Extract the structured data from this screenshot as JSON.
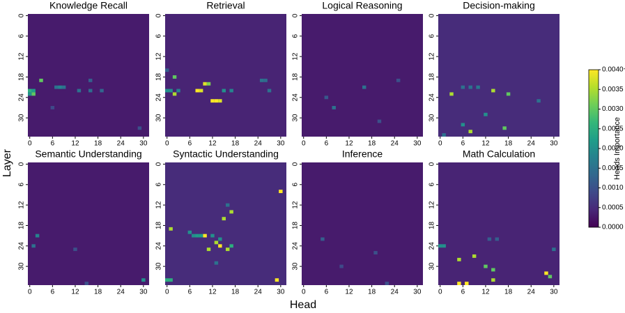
{
  "figure": {
    "xlabel": "Head",
    "ylabel": "Layer",
    "colorbar_label": "Heads Importance",
    "colormap": "viridis",
    "clim": [
      0,
      0.004
    ],
    "cticks": [
      {
        "value": 0,
        "label": "0.0000"
      },
      {
        "value": 0.0005,
        "label": "0.0005"
      },
      {
        "value": 0.001,
        "label": "0.0010"
      },
      {
        "value": 0.0015,
        "label": "0.0015"
      },
      {
        "value": 0.002,
        "label": "0.0020"
      },
      {
        "value": 0.0025,
        "label": "0.0025"
      },
      {
        "value": 0.003,
        "label": "0.0030"
      },
      {
        "value": 0.0035,
        "label": "0.0035"
      },
      {
        "value": 0.004,
        "label": "0.0040+"
      }
    ]
  },
  "chart_data": [
    {
      "type": "heatmap",
      "title": "Knowledge Recall",
      "xlim": [
        -0.5,
        31.5
      ],
      "ylim": [
        -0.5,
        35.5
      ],
      "xticks": [
        0,
        6,
        12,
        18,
        24,
        30
      ],
      "yticks": [
        0,
        6,
        12,
        18,
        24,
        30
      ],
      "fill_value": 0.0003,
      "cells": [
        {
          "layer": 22,
          "head": 0,
          "value": 0.0025
        },
        {
          "layer": 22,
          "head": 1,
          "value": 0.0022
        },
        {
          "layer": 23,
          "head": 1,
          "value": 0.003
        },
        {
          "layer": 23,
          "head": 0,
          "value": 0.002
        },
        {
          "layer": 19,
          "head": 3,
          "value": 0.003
        },
        {
          "layer": 21,
          "head": 7,
          "value": 0.0015
        },
        {
          "layer": 21,
          "head": 8,
          "value": 0.0018
        },
        {
          "layer": 21,
          "head": 9,
          "value": 0.0015
        },
        {
          "layer": 22,
          "head": 13,
          "value": 0.0015
        },
        {
          "layer": 22,
          "head": 16,
          "value": 0.0014
        },
        {
          "layer": 22,
          "head": 19,
          "value": 0.0013
        },
        {
          "layer": 19,
          "head": 16,
          "value": 0.0012
        },
        {
          "layer": 33,
          "head": 29,
          "value": 0.001
        },
        {
          "layer": 27,
          "head": 6,
          "value": 0.0009
        }
      ]
    },
    {
      "type": "heatmap",
      "title": "Retrieval",
      "xlim": [
        -0.5,
        31.5
      ],
      "ylim": [
        -0.5,
        35.5
      ],
      "xticks": [
        0,
        6,
        12,
        18,
        24,
        30
      ],
      "yticks": [
        0,
        6,
        12,
        18,
        24,
        30
      ],
      "fill_value": 0.0004,
      "cells": [
        {
          "layer": 22,
          "head": 8,
          "value": 0.004
        },
        {
          "layer": 22,
          "head": 9,
          "value": 0.0038
        },
        {
          "layer": 20,
          "head": 10,
          "value": 0.0038
        },
        {
          "layer": 20,
          "head": 11,
          "value": 0.0032
        },
        {
          "layer": 25,
          "head": 12,
          "value": 0.004
        },
        {
          "layer": 25,
          "head": 13,
          "value": 0.004
        },
        {
          "layer": 25,
          "head": 14,
          "value": 0.0038
        },
        {
          "layer": 23,
          "head": 2,
          "value": 0.0035
        },
        {
          "layer": 18,
          "head": 2,
          "value": 0.003
        },
        {
          "layer": 22,
          "head": 0,
          "value": 0.002
        },
        {
          "layer": 22,
          "head": 1,
          "value": 0.002
        },
        {
          "layer": 22,
          "head": 3,
          "value": 0.0018
        },
        {
          "layer": 22,
          "head": 15,
          "value": 0.002
        },
        {
          "layer": 22,
          "head": 17,
          "value": 0.0018
        },
        {
          "layer": 19,
          "head": 25,
          "value": 0.0015
        },
        {
          "layer": 19,
          "head": 26,
          "value": 0.0014
        },
        {
          "layer": 22,
          "head": 27,
          "value": 0.0015
        },
        {
          "layer": 16,
          "head": 0,
          "value": 0.0012
        }
      ]
    },
    {
      "type": "heatmap",
      "title": "Logical Reasoning",
      "xlim": [
        -0.5,
        31.5
      ],
      "ylim": [
        -0.5,
        35.5
      ],
      "xticks": [
        0,
        6,
        12,
        18,
        24,
        30
      ],
      "yticks": [
        0,
        6,
        12,
        18,
        24,
        30
      ],
      "fill_value": 0.0003,
      "cells": [
        {
          "layer": 21,
          "head": 16,
          "value": 0.0015
        },
        {
          "layer": 27,
          "head": 8,
          "value": 0.0015
        },
        {
          "layer": 24,
          "head": 6,
          "value": 0.0011
        },
        {
          "layer": 19,
          "head": 25,
          "value": 0.001
        },
        {
          "layer": 31,
          "head": 20,
          "value": 0.001
        }
      ]
    },
    {
      "type": "heatmap",
      "title": "Decision-making",
      "xlim": [
        -0.5,
        31.5
      ],
      "ylim": [
        -0.5,
        35.5
      ],
      "xticks": [
        0,
        6,
        12,
        18,
        24,
        30
      ],
      "yticks": [
        0,
        6,
        12,
        18,
        24,
        30
      ],
      "fill_value": 0.0005,
      "cells": [
        {
          "layer": 23,
          "head": 3,
          "value": 0.0035
        },
        {
          "layer": 22,
          "head": 14,
          "value": 0.0035
        },
        {
          "layer": 23,
          "head": 18,
          "value": 0.003
        },
        {
          "layer": 34,
          "head": 8,
          "value": 0.0035
        },
        {
          "layer": 33,
          "head": 17,
          "value": 0.003
        },
        {
          "layer": 21,
          "head": 6,
          "value": 0.0015
        },
        {
          "layer": 21,
          "head": 8,
          "value": 0.0015
        },
        {
          "layer": 21,
          "head": 10,
          "value": 0.0016
        },
        {
          "layer": 29,
          "head": 12,
          "value": 0.002
        },
        {
          "layer": 32,
          "head": 6,
          "value": 0.002
        },
        {
          "layer": 25,
          "head": 26,
          "value": 0.0015
        },
        {
          "layer": 35,
          "head": 1,
          "value": 0.0015
        }
      ]
    },
    {
      "type": "heatmap",
      "title": "Semantic Understanding",
      "xlim": [
        -0.5,
        31.5
      ],
      "ylim": [
        -0.5,
        35.5
      ],
      "xticks": [
        0,
        6,
        12,
        18,
        24,
        30
      ],
      "yticks": [
        0,
        6,
        12,
        18,
        24,
        30
      ],
      "fill_value": 0.0003,
      "cells": [
        {
          "layer": 21,
          "head": 2,
          "value": 0.0018
        },
        {
          "layer": 24,
          "head": 1,
          "value": 0.0015
        },
        {
          "layer": 34,
          "head": 30,
          "value": 0.002
        },
        {
          "layer": 25,
          "head": 12,
          "value": 0.001
        },
        {
          "layer": 35,
          "head": 15,
          "value": 0.001
        }
      ]
    },
    {
      "type": "heatmap",
      "title": "Syntactic Understanding",
      "xlim": [
        -0.5,
        31.5
      ],
      "ylim": [
        -0.5,
        35.5
      ],
      "xticks": [
        0,
        6,
        12,
        18,
        24,
        30
      ],
      "yticks": [
        0,
        6,
        12,
        18,
        24,
        30
      ],
      "fill_value": 0.0005,
      "cells": [
        {
          "layer": 8,
          "head": 30,
          "value": 0.004
        },
        {
          "layer": 14,
          "head": 17,
          "value": 0.0035
        },
        {
          "layer": 16,
          "head": 15,
          "value": 0.0035
        },
        {
          "layer": 19,
          "head": 1,
          "value": 0.0035
        },
        {
          "layer": 21,
          "head": 10,
          "value": 0.004
        },
        {
          "layer": 21,
          "head": 7,
          "value": 0.002
        },
        {
          "layer": 21,
          "head": 8,
          "value": 0.0022
        },
        {
          "layer": 21,
          "head": 9,
          "value": 0.0022
        },
        {
          "layer": 21,
          "head": 12,
          "value": 0.002
        },
        {
          "layer": 22,
          "head": 14,
          "value": 0.002
        },
        {
          "layer": 23,
          "head": 13,
          "value": 0.0035
        },
        {
          "layer": 24,
          "head": 14,
          "value": 0.004
        },
        {
          "layer": 25,
          "head": 11,
          "value": 0.0035
        },
        {
          "layer": 25,
          "head": 16,
          "value": 0.0035
        },
        {
          "layer": 24,
          "head": 17,
          "value": 0.0025
        },
        {
          "layer": 34,
          "head": 29,
          "value": 0.004
        },
        {
          "layer": 34,
          "head": 0,
          "value": 0.0025
        },
        {
          "layer": 34,
          "head": 1,
          "value": 0.0025
        },
        {
          "layer": 20,
          "head": 6,
          "value": 0.002
        },
        {
          "layer": 12,
          "head": 16,
          "value": 0.0015
        },
        {
          "layer": 29,
          "head": 13,
          "value": 0.0015
        }
      ]
    },
    {
      "type": "heatmap",
      "title": "Inference",
      "xlim": [
        -0.5,
        31.5
      ],
      "ylim": [
        -0.5,
        35.5
      ],
      "xticks": [
        0,
        6,
        12,
        18,
        24,
        30
      ],
      "yticks": [
        0,
        6,
        12,
        18,
        24,
        30
      ],
      "fill_value": 0.0003,
      "cells": [
        {
          "layer": 22,
          "head": 5,
          "value": 0.0012
        },
        {
          "layer": 26,
          "head": 19,
          "value": 0.001
        },
        {
          "layer": 30,
          "head": 10,
          "value": 0.0009
        },
        {
          "layer": 35,
          "head": 22,
          "value": 0.001
        }
      ]
    },
    {
      "type": "heatmap",
      "title": "Math Calculation",
      "xlim": [
        -0.5,
        31.5
      ],
      "ylim": [
        -0.5,
        35.5
      ],
      "xticks": [
        0,
        6,
        12,
        18,
        24,
        30
      ],
      "yticks": [
        0,
        6,
        12,
        18,
        24,
        30
      ],
      "fill_value": 0.0004,
      "cells": [
        {
          "layer": 24,
          "head": 0,
          "value": 0.002
        },
        {
          "layer": 24,
          "head": 1,
          "value": 0.002
        },
        {
          "layer": 27,
          "head": 9,
          "value": 0.0035
        },
        {
          "layer": 28,
          "head": 5,
          "value": 0.0035
        },
        {
          "layer": 30,
          "head": 12,
          "value": 0.003
        },
        {
          "layer": 31,
          "head": 14,
          "value": 0.003
        },
        {
          "layer": 35,
          "head": 5,
          "value": 0.004
        },
        {
          "layer": 35,
          "head": 7,
          "value": 0.004
        },
        {
          "layer": 34,
          "head": 14,
          "value": 0.0035
        },
        {
          "layer": 32,
          "head": 28,
          "value": 0.004
        },
        {
          "layer": 33,
          "head": 29,
          "value": 0.003
        },
        {
          "layer": 22,
          "head": 13,
          "value": 0.0012
        },
        {
          "layer": 22,
          "head": 15,
          "value": 0.0012
        },
        {
          "layer": 25,
          "head": 30,
          "value": 0.0015
        }
      ]
    }
  ]
}
